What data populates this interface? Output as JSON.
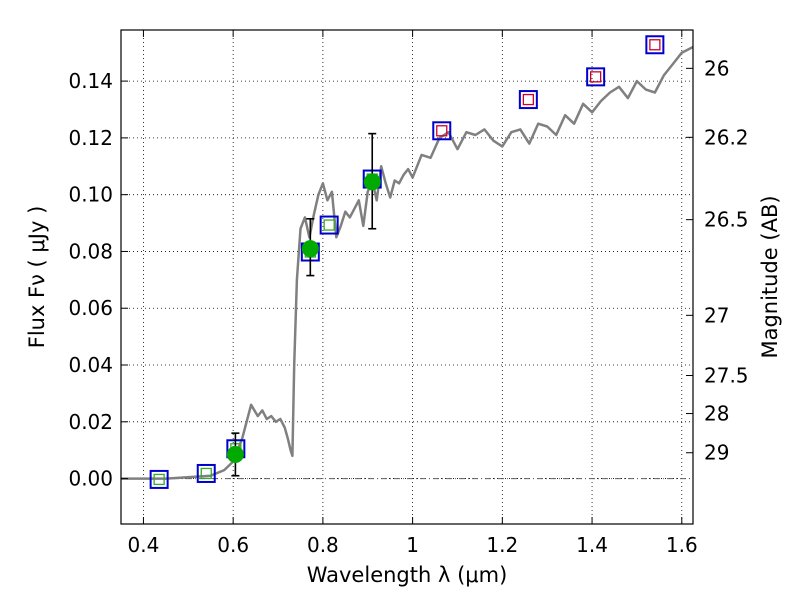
{
  "chart_data": {
    "type": "scatter",
    "xlabel": "Wavelength  λ (μm)",
    "ylabel": "Flux  Fν  ( μJy )",
    "y2label": "Magnitude (AB)",
    "xlim": [
      0.35,
      1.625
    ],
    "ylim": [
      -0.016,
      0.158
    ],
    "x_ticks": [
      0.4,
      0.6,
      0.8,
      1.0,
      1.2,
      1.4,
      1.6
    ],
    "x_tick_labels": [
      "0.4",
      "0.6",
      "0.8",
      "1",
      "1.2",
      "1.4",
      "1.6"
    ],
    "y_ticks": [
      0.0,
      0.02,
      0.04,
      0.06,
      0.08,
      0.1,
      0.12,
      0.14
    ],
    "y_tick_labels": [
      "0.00",
      "0.02",
      "0.04",
      "0.06",
      "0.08",
      "0.10",
      "0.12",
      "0.14"
    ],
    "y2_ticks": [
      {
        "label": "26",
        "flux": 0.1445
      },
      {
        "label": "26.2",
        "flux": 0.1202
      },
      {
        "label": "26.5",
        "flux": 0.0912
      },
      {
        "label": "27",
        "flux": 0.0575
      },
      {
        "label": "27.5",
        "flux": 0.0363
      },
      {
        "label": "28",
        "flux": 0.0229
      },
      {
        "label": "29",
        "flux": 0.0091
      }
    ],
    "grid": true,
    "colors": {
      "model": "#808080",
      "measured": "#00aa00",
      "model_box": "#0000cc",
      "red_box": "#cc0033",
      "green_box": "#33aa33",
      "errorbar": "#000000"
    },
    "model_spectrum": {
      "x": [
        0.35,
        0.45,
        0.55,
        0.58,
        0.6,
        0.62,
        0.64,
        0.655,
        0.665,
        0.675,
        0.685,
        0.695,
        0.705,
        0.715,
        0.722,
        0.728,
        0.732,
        0.736,
        0.742,
        0.75,
        0.76,
        0.77,
        0.78,
        0.79,
        0.8,
        0.81,
        0.82,
        0.83,
        0.84,
        0.85,
        0.86,
        0.87,
        0.88,
        0.89,
        0.9,
        0.91,
        0.92,
        0.93,
        0.94,
        0.95,
        0.96,
        0.97,
        0.98,
        0.99,
        1.0,
        1.02,
        1.04,
        1.06,
        1.08,
        1.1,
        1.12,
        1.14,
        1.16,
        1.18,
        1.2,
        1.22,
        1.24,
        1.26,
        1.28,
        1.3,
        1.32,
        1.34,
        1.36,
        1.38,
        1.4,
        1.42,
        1.44,
        1.46,
        1.48,
        1.5,
        1.52,
        1.54,
        1.56,
        1.58,
        1.6,
        1.625
      ],
      "y": [
        0.0,
        0.0,
        0.001,
        0.003,
        0.006,
        0.014,
        0.026,
        0.022,
        0.024,
        0.021,
        0.022,
        0.02,
        0.021,
        0.018,
        0.014,
        0.01,
        0.008,
        0.04,
        0.07,
        0.088,
        0.092,
        0.085,
        0.093,
        0.1,
        0.104,
        0.098,
        0.101,
        0.085,
        0.089,
        0.094,
        0.092,
        0.095,
        0.098,
        0.089,
        0.101,
        0.105,
        0.098,
        0.11,
        0.104,
        0.099,
        0.105,
        0.104,
        0.107,
        0.109,
        0.106,
        0.114,
        0.113,
        0.12,
        0.122,
        0.116,
        0.122,
        0.121,
        0.123,
        0.119,
        0.117,
        0.122,
        0.123,
        0.118,
        0.125,
        0.124,
        0.121,
        0.128,
        0.125,
        0.132,
        0.129,
        0.133,
        0.136,
        0.138,
        0.134,
        0.14,
        0.137,
        0.136,
        0.142,
        0.146,
        0.15,
        0.152
      ]
    },
    "measured_points": [
      {
        "x": 0.605,
        "y": 0.0085,
        "yerr_low": 0.0075,
        "yerr_high": 0.0075
      },
      {
        "x": 0.772,
        "y": 0.081,
        "yerr_low": 0.0095,
        "yerr_high": 0.0105
      },
      {
        "x": 0.91,
        "y": 0.1045,
        "yerr_low": 0.0165,
        "yerr_high": 0.017
      }
    ],
    "model_bands": [
      {
        "x": 0.435,
        "y": -0.0003,
        "inner": "green_box"
      },
      {
        "x": 0.54,
        "y": 0.0018,
        "inner": "green_box"
      },
      {
        "x": 0.606,
        "y": 0.0105,
        "inner": "green_box"
      },
      {
        "x": 0.772,
        "y": 0.0798,
        "inner": "green_box"
      },
      {
        "x": 0.814,
        "y": 0.0893,
        "inner": "green_box"
      },
      {
        "x": 0.91,
        "y": 0.1055,
        "inner": "green_box"
      },
      {
        "x": 1.065,
        "y": 0.1225,
        "inner": "red_box"
      },
      {
        "x": 1.258,
        "y": 0.1335,
        "inner": "red_box"
      },
      {
        "x": 1.408,
        "y": 0.1415,
        "inner": "red_box"
      },
      {
        "x": 1.54,
        "y": 0.1528,
        "inner": "red_box"
      }
    ]
  }
}
